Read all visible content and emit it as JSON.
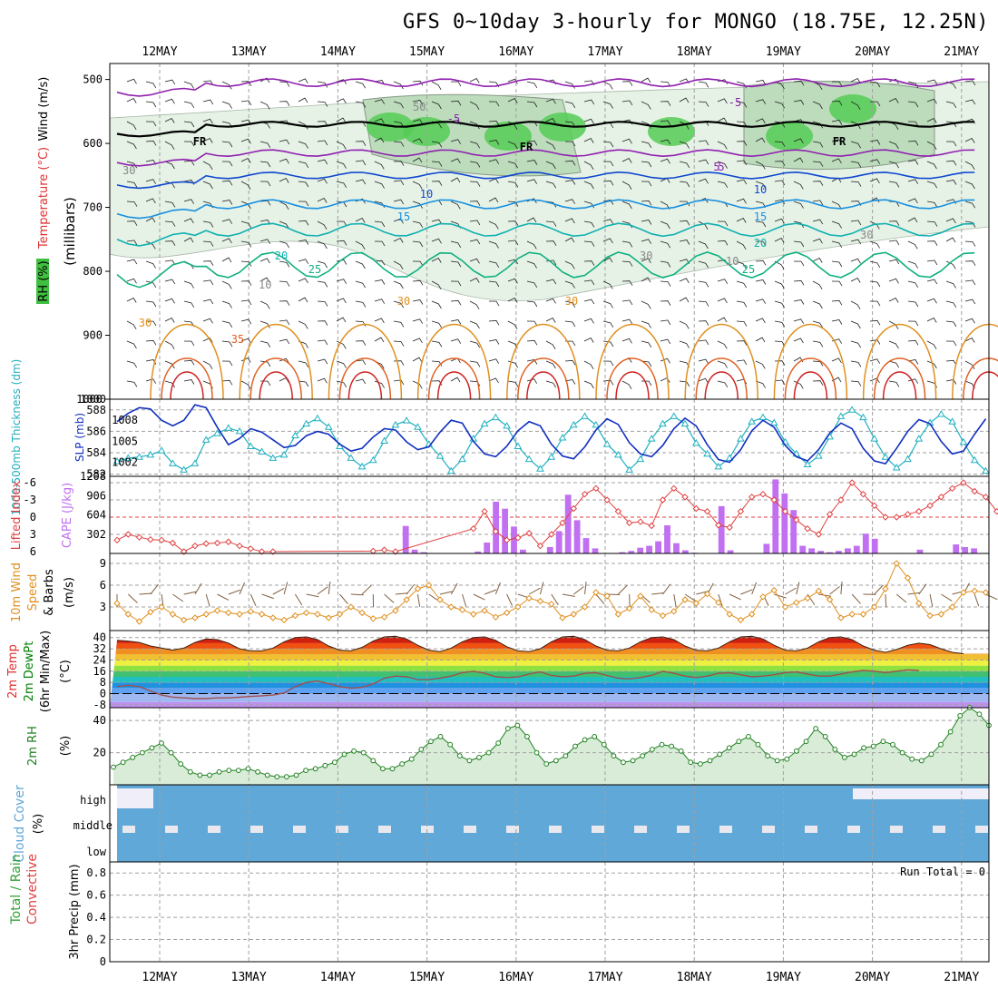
{
  "title": "GFS 0~10day 3-hourly for MONGO (18.75E, 12.25N)",
  "dates": [
    "12MAY",
    "13MAY",
    "14MAY",
    "15MAY",
    "16MAY",
    "17MAY",
    "18MAY",
    "19MAY",
    "20MAY",
    "21MAY"
  ],
  "colors": {
    "dewpt": "#008000",
    "temp": "#e0302a",
    "rh_green": "#40c040",
    "cyan": "#20b0c0",
    "slp_blue": "#1030c0",
    "cape": "#c070f0",
    "lifted": "#e04040",
    "wind": "#e09020",
    "cloud": "#60a8d8",
    "precip_green": "#30a030"
  },
  "panels": {
    "upper": {
      "labels": [
        {
          "text": "Wind (m/s)",
          "color": "#000000"
        },
        {
          "text": "Temperature (°C)",
          "color": "#e03030"
        },
        {
          "text": "RH (%)",
          "color": "#000000"
        }
      ],
      "ylabel": "(millibars)",
      "yticks": [
        "500",
        "600",
        "700",
        "800",
        "900",
        "1000"
      ],
      "contour_labels": [
        "-5",
        "-5",
        "5",
        "5",
        "10",
        "10",
        "15",
        "15",
        "20",
        "20",
        "25",
        "25",
        "30",
        "30",
        "30",
        "35",
        "FR",
        "FR",
        "FR"
      ],
      "rh_labels": [
        "10",
        "30",
        "50",
        "30",
        "30",
        "10"
      ]
    },
    "thickness": {
      "label_left": "1000-500mb Thickness (dm)",
      "label_right": "SLP (mb)",
      "yticks_left": [
        "588",
        "586",
        "584",
        "582"
      ],
      "yticks_right": [
        "1008",
        "1005",
        "1002"
      ],
      "thickness_dm": [
        583.2,
        583.5,
        583.6,
        583.8,
        584.2,
        583.0,
        582.4,
        583.0,
        585.2,
        585.8,
        586.3,
        586.0,
        584.6,
        584.1,
        583.5,
        583.8,
        585.6,
        586.7,
        587.2,
        586.4,
        584.6,
        583.5,
        582.7,
        583.3,
        585.1,
        586.6,
        587.0,
        586.4,
        584.8,
        583.7,
        582.3,
        583.4,
        585.3,
        586.7,
        587.3,
        586.5,
        584.6,
        583.4,
        582.5,
        583.6,
        585.4,
        586.6,
        587.4,
        586.6,
        584.8,
        583.8,
        582.4,
        583.4,
        585.3,
        586.7,
        587.4,
        586.7,
        584.9,
        583.9,
        582.7,
        583.5,
        585.3,
        586.9,
        587.3,
        586.8,
        585.0,
        583.9,
        582.9,
        583.7,
        585.5,
        587.4,
        588.0,
        587.3,
        585.3,
        583.6,
        582.6,
        583.4,
        585.3,
        586.8,
        587.6,
        586.9,
        585.0,
        583.3,
        582.3
      ],
      "slp_mb": [
        1007.8,
        1009.0,
        1009.8,
        1009.6,
        1008.0,
        1007.2,
        1008.0,
        1010.2,
        1009.8,
        1007.0,
        1004.5,
        1005.4,
        1006.8,
        1006.3,
        1005.2,
        1004.1,
        1004.4,
        1005.8,
        1006.4,
        1006.0,
        1004.6,
        1003.6,
        1004.0,
        1005.6,
        1006.8,
        1006.6,
        1004.9,
        1003.8,
        1004.2,
        1006.3,
        1008.0,
        1007.6,
        1005.0,
        1003.2,
        1002.8,
        1004.3,
        1006.5,
        1007.8,
        1007.2,
        1004.6,
        1002.9,
        1002.5,
        1004.2,
        1006.6,
        1008.2,
        1007.4,
        1004.8,
        1003.2,
        1002.8,
        1004.4,
        1006.8,
        1008.3,
        1007.2,
        1004.5,
        1002.4,
        1002.0,
        1003.8,
        1006.5,
        1008.0,
        1007.0,
        1004.4,
        1002.8,
        1002.2,
        1003.8,
        1006.2,
        1007.6,
        1006.8,
        1004.0,
        1002.2,
        1001.8,
        1004.0,
        1006.4,
        1008.1,
        1007.5,
        1005.0,
        1003.2,
        1003.6,
        1006.0,
        1008.2
      ]
    },
    "cape": {
      "label_left": "Lifted Index",
      "label_right": "CAPE (J/kg)",
      "yticks_left": [
        "-6",
        "-3",
        "0",
        "3",
        "6"
      ],
      "yticks_right": [
        "1208",
        "906",
        "604",
        "302"
      ],
      "lifted_index": [
        4.0,
        3.0,
        3.5,
        3.9,
        4.0,
        4.5,
        6.0,
        5.0,
        4.6,
        4.5,
        4.3,
        5.0,
        5.5,
        6.0,
        6.0,
        null,
        null,
        null,
        null,
        null,
        null,
        null,
        null,
        5.9,
        5.7,
        6.0,
        null,
        null,
        null,
        null,
        null,
        null,
        2.0,
        -1.0,
        2.5,
        4.0,
        3.6,
        2.8,
        5.0,
        3.0,
        1.0,
        -1.5,
        -4.0,
        -5.0,
        -3.0,
        -1.0,
        1.0,
        0.8,
        1.5,
        -3.0,
        -5.0,
        -3.5,
        -1.5,
        -1.0,
        1.4,
        1.8,
        -1.0,
        -3.5,
        -4.0,
        -3.0,
        -1.0,
        0.5,
        2.0,
        3.0,
        -0.5,
        -3.0,
        -6.0,
        -4.0,
        -2.0,
        0.0,
        0.0,
        -0.5,
        -1.0,
        -2.0,
        -3.5,
        -5.0,
        -6.0,
        -4.5,
        -3.5,
        -1.0
      ],
      "cape_jkg": [
        0,
        0,
        0,
        0,
        0,
        0,
        0,
        0,
        0,
        0,
        0,
        0,
        0,
        0,
        0,
        0,
        0,
        0,
        0,
        0,
        0,
        0,
        0,
        0,
        0,
        0,
        0,
        0,
        0,
        0,
        0,
        0,
        430,
        60,
        20,
        0,
        0,
        0,
        0,
        0,
        30,
        170,
        810,
        700,
        420,
        60,
        0,
        0,
        100,
        350,
        920,
        520,
        240,
        80,
        0,
        0,
        20,
        40,
        90,
        120,
        190,
        440,
        160,
        50,
        10,
        0,
        0,
        740,
        50,
        0,
        0,
        0,
        150,
        1160,
        940,
        680,
        120,
        80,
        40,
        20,
        40,
        80,
        120,
        310,
        230,
        0,
        0,
        0,
        0,
        60,
        0,
        0,
        0,
        140,
        100,
        80,
        0,
        0,
        0
      ],
      "cape_scale_max": 1208
    },
    "wind10m": {
      "label_left": "10m Wind Speed (m/s) & Barbs",
      "yticks": [
        "9",
        "6",
        "3"
      ],
      "speed_ms": [
        3.5,
        2.0,
        1.0,
        2.3,
        3.0,
        2.0,
        1.2,
        1.5,
        2.0,
        2.5,
        2.2,
        2.0,
        2.4,
        2.0,
        1.5,
        1.2,
        1.8,
        2.2,
        2.0,
        1.5,
        2.0,
        3.0,
        2.2,
        1.4,
        1.6,
        2.5,
        4.0,
        5.5,
        6.0,
        4.0,
        3.0,
        2.6,
        2.0,
        2.5,
        1.6,
        2.2,
        3.0,
        4.2,
        3.8,
        3.4,
        1.5,
        2.0,
        3.0,
        5.0,
        4.5,
        2.0,
        2.8,
        4.5,
        2.6,
        1.8,
        2.4,
        4.0,
        3.5,
        4.8,
        3.6,
        2.0,
        1.2,
        2.0,
        4.4,
        5.3,
        3.0,
        3.6,
        4.2,
        5.2,
        4.0,
        1.5,
        2.0,
        2.0,
        3.0,
        5.5,
        9.0,
        7.0,
        3.5,
        1.8,
        2.0,
        3.0,
        5.0,
        5.2,
        5.0
      ]
    },
    "temp2m": {
      "label_left": "2m Temp 2m DewPt (6hr Min/Max)",
      "yticks": [
        "40",
        "32",
        "24",
        "16",
        "8",
        "0",
        "-8"
      ],
      "temp_c": [
        38.0,
        37.5,
        36.5,
        34.0,
        32.5,
        31.0,
        32.5,
        36.5,
        39.0,
        38.5,
        36.0,
        32.0,
        30.5,
        30.5,
        32.5,
        37.0,
        40.0,
        40.5,
        38.5,
        34.0,
        31.0,
        30.5,
        33.0,
        37.5,
        40.5,
        41.0,
        39.0,
        34.5,
        31.0,
        30.0,
        32.5,
        37.0,
        40.0,
        40.5,
        38.0,
        33.5,
        30.5,
        30.0,
        32.0,
        37.0,
        40.5,
        41.0,
        38.5,
        34.0,
        31.0,
        30.5,
        32.5,
        37.0,
        40.0,
        40.5,
        38.5,
        34.0,
        31.0,
        30.5,
        32.5,
        37.0,
        40.5,
        41.0,
        39.0,
        34.5,
        31.0,
        30.5,
        32.5,
        37.0,
        40.0,
        40.5,
        38.5,
        34.0,
        31.0,
        29.5,
        31.5,
        34.5,
        36.0,
        35.0,
        32.0,
        29.5,
        28.5
      ],
      "dewpt_c": [
        5.0,
        6.0,
        5.0,
        2.0,
        -1.0,
        -2.5,
        -3.0,
        -3.5,
        -3.5,
        -3.0,
        -3.0,
        -2.5,
        -2.0,
        -1.5,
        -1.0,
        0.5,
        5.0,
        8.0,
        9.0,
        7.0,
        5.0,
        4.0,
        4.5,
        7.0,
        11.0,
        12.5,
        12.0,
        10.0,
        10.0,
        11.0,
        12.5,
        15.0,
        16.0,
        14.5,
        12.0,
        11.5,
        12.0,
        14.0,
        15.5,
        13.0,
        12.0,
        12.5,
        14.5,
        15.0,
        13.0,
        11.0,
        10.5,
        11.5,
        13.0,
        16.0,
        14.5,
        12.5,
        11.5,
        12.5,
        14.5,
        15.0,
        13.5,
        12.0,
        12.5,
        13.5,
        15.0,
        15.5,
        14.0,
        12.5,
        12.5,
        14.0,
        15.5,
        16.5,
        16.0,
        15.0,
        16.0,
        17.0,
        16.5
      ]
    },
    "rh2m": {
      "label_left": "2m RH",
      "ylabel": "(%)",
      "yticks": [
        "40",
        "20"
      ],
      "rh_pct": [
        11,
        14,
        17,
        20,
        23,
        26,
        20,
        13,
        8,
        6,
        6,
        8,
        9,
        9,
        10,
        8,
        6,
        5,
        5,
        6,
        9,
        10,
        12,
        14,
        19,
        21,
        20,
        15,
        10,
        10,
        13,
        16,
        22,
        27,
        30,
        25,
        18,
        15,
        17,
        20,
        26,
        35,
        37,
        30,
        20,
        13,
        15,
        18,
        24,
        28,
        30,
        25,
        18,
        14,
        15,
        18,
        22,
        25,
        24,
        21,
        14,
        13,
        15,
        19,
        23,
        27,
        30,
        25,
        18,
        15,
        16,
        21,
        27,
        35,
        30,
        22,
        17,
        19,
        23,
        24,
        27,
        25,
        20,
        16,
        15,
        19,
        25,
        33,
        43,
        48,
        44,
        37
      ]
    },
    "cloud": {
      "label_left": "Cloud Cover",
      "ylabel": "(%)",
      "levels": [
        "high",
        "middle",
        "low"
      ]
    },
    "precip": {
      "label_left": "Total / Rain Convective",
      "ylabel": "3hr Precip (mm)",
      "yticks": [
        "0.8",
        "0.6",
        "0.4",
        "0.2",
        "0"
      ],
      "run_total_text": "Run Total = 0",
      "values_mm": [
        0
      ]
    }
  }
}
